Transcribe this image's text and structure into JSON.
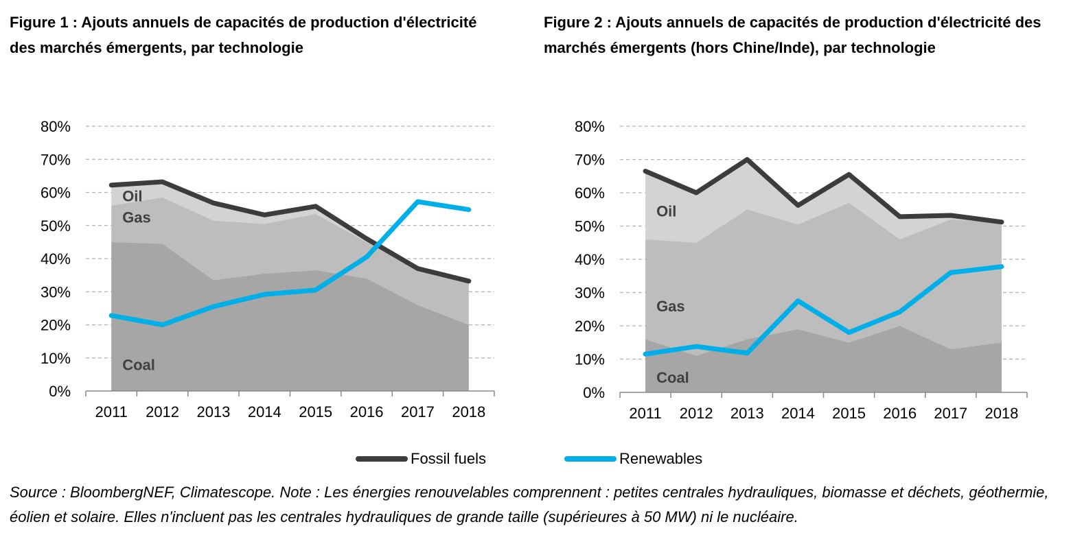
{
  "figure1": {
    "title": "Figure 1 : Ajouts annuels de capacités de production d'électricité des marchés émergents, par technologie"
  },
  "figure2": {
    "title": "Figure 2 : Ajouts annuels de capacités de production d'électricité des marchés émergents (hors Chine/Inde), par technologie"
  },
  "legend": {
    "fossil": "Fossil fuels",
    "renewables": "Renewables"
  },
  "source_note": "Source : BloombergNEF, Climatescope. Note : Les énergies renouvelables comprennent : petites centrales hydrauliques, biomasse et déchets, géothermie, éolien et solaire. Elles n'incluent pas les centrales hydrauliques de grande taille (supérieures à 50 MW) ni le nucléaire.",
  "colors": {
    "fossil": "#3c3c3c",
    "renewables": "#00aee8",
    "coal": "#a6a6a6",
    "gas": "#bdbdbd",
    "oil": "#d3d3d3",
    "grid": "#b0b0b0"
  },
  "chart_data": [
    {
      "type": "area",
      "title": "Figure 1 : Ajouts annuels de capacités de production d'électricité des marchés émergents, par technologie",
      "x": [
        "2011",
        "2012",
        "2013",
        "2014",
        "2015",
        "2016",
        "2017",
        "2018"
      ],
      "ylim": [
        0,
        80
      ],
      "yticks": [
        "0%",
        "10%",
        "20%",
        "30%",
        "40%",
        "50%",
        "60%",
        "70%",
        "80%"
      ],
      "grid": true,
      "stacked_areas": [
        {
          "name": "Coal",
          "values": [
            45,
            44.5,
            33.5,
            35.5,
            36.5,
            34,
            26,
            20
          ]
        },
        {
          "name": "Gas",
          "values": [
            11,
            14,
            18,
            15,
            17,
            11,
            10.5,
            13
          ]
        },
        {
          "name": "Oil",
          "values": [
            6,
            4.5,
            5,
            2.5,
            2,
            0.5,
            0.5,
            0
          ]
        }
      ],
      "series": [
        {
          "name": "Fossil fuels",
          "values": [
            62.2,
            63.2,
            56.8,
            53.2,
            55.8,
            46.0,
            37.0,
            33.2
          ]
        },
        {
          "name": "Renewables",
          "values": [
            22.8,
            20.0,
            25.5,
            29.2,
            30.5,
            40.5,
            57.2,
            54.8
          ]
        }
      ]
    },
    {
      "type": "area",
      "title": "Figure 2 : Ajouts annuels de capacités de production d'électricité des marchés émergents (hors Chine/Inde), par technologie",
      "x": [
        "2011",
        "2012",
        "2013",
        "2014",
        "2015",
        "2016",
        "2017",
        "2018"
      ],
      "ylim": [
        0,
        80
      ],
      "yticks": [
        "0%",
        "10%",
        "20%",
        "30%",
        "40%",
        "50%",
        "60%",
        "70%",
        "80%"
      ],
      "grid": true,
      "stacked_areas": [
        {
          "name": "Coal",
          "values": [
            16,
            11,
            16,
            19,
            15,
            20,
            13,
            15
          ]
        },
        {
          "name": "Gas",
          "values": [
            30,
            34,
            39,
            31.5,
            42,
            26,
            39,
            36
          ]
        },
        {
          "name": "Oil",
          "values": [
            20.5,
            15,
            15,
            5.5,
            8.5,
            6.5,
            1,
            0
          ]
        }
      ],
      "series": [
        {
          "name": "Fossil fuels",
          "values": [
            66.5,
            60.0,
            70.0,
            56.2,
            65.5,
            52.8,
            53.2,
            51.2
          ]
        },
        {
          "name": "Renewables",
          "values": [
            11.5,
            13.8,
            11.8,
            27.5,
            18.0,
            24.2,
            36.0,
            37.8
          ]
        }
      ]
    }
  ]
}
